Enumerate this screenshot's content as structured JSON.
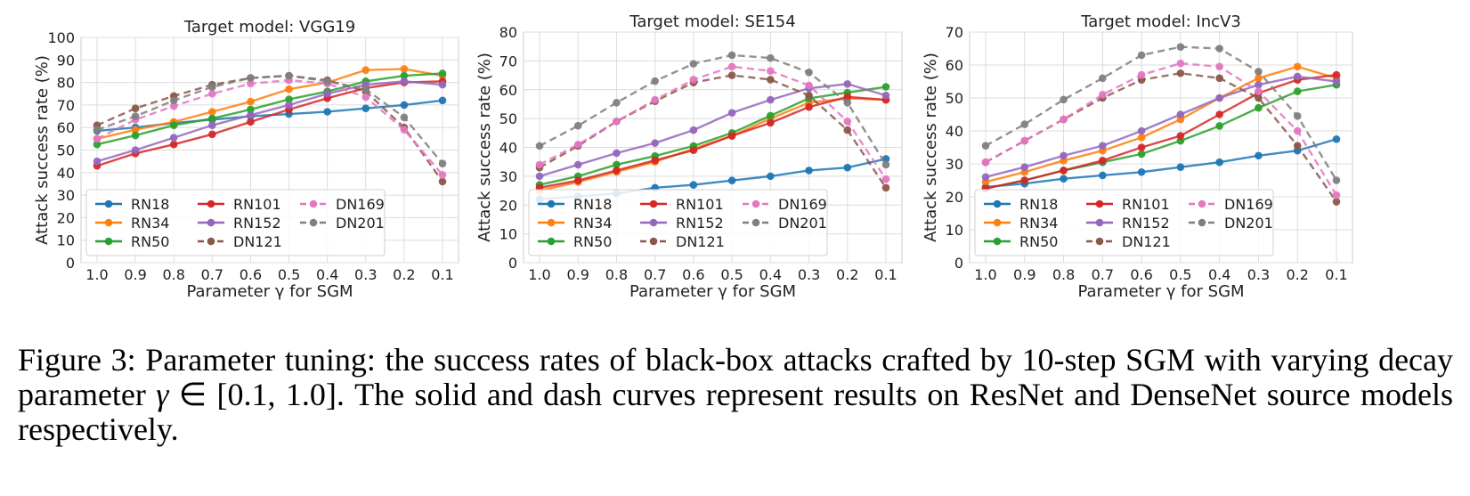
{
  "x_ticks": [
    "1.0",
    "0.9",
    "0.8",
    "0.7",
    "0.6",
    "0.5",
    "0.4",
    "0.3",
    "0.2",
    "0.1"
  ],
  "x_label": "Parameter γ for SGM",
  "y_label": "Attack success rate (%)",
  "legend": [
    {
      "name": "RN18",
      "color": "#1f77b4",
      "dashed": false
    },
    {
      "name": "RN34",
      "color": "#ff7f0e",
      "dashed": false
    },
    {
      "name": "RN50",
      "color": "#2ca02c",
      "dashed": false
    },
    {
      "name": "RN101",
      "color": "#d62728",
      "dashed": false
    },
    {
      "name": "RN152",
      "color": "#9467bd",
      "dashed": false
    },
    {
      "name": "DN121",
      "color": "#8c564b",
      "dashed": true
    },
    {
      "name": "DN169",
      "color": "#e377c2",
      "dashed": true
    },
    {
      "name": "DN201",
      "color": "#7f7f7f",
      "dashed": true
    }
  ],
  "chart_data": [
    {
      "type": "line",
      "title": "Target model: VGG19",
      "xlabel": "Parameter γ for SGM",
      "ylabel": "Attack success rate (%)",
      "categories": [
        "1.0",
        "0.9",
        "0.8",
        "0.7",
        "0.6",
        "0.5",
        "0.4",
        "0.3",
        "0.2",
        "0.1"
      ],
      "ylim": [
        0,
        100
      ],
      "yticks": [
        0,
        10,
        20,
        30,
        40,
        50,
        60,
        70,
        80,
        90,
        100
      ],
      "legend_loc": "lower-left",
      "series": [
        {
          "name": "RN18",
          "values": [
            58.5,
            60,
            62,
            63.5,
            65,
            66,
            67,
            68.5,
            70,
            72
          ]
        },
        {
          "name": "RN34",
          "values": [
            55,
            59,
            62.5,
            67,
            71.5,
            77,
            80,
            85.5,
            86,
            83
          ]
        },
        {
          "name": "RN50",
          "values": [
            52.5,
            56.5,
            61,
            64,
            68,
            72.5,
            76,
            80.5,
            83,
            84
          ]
        },
        {
          "name": "RN101",
          "values": [
            43,
            48.5,
            52.5,
            57,
            62.5,
            68,
            73,
            77.5,
            80,
            80.5
          ]
        },
        {
          "name": "RN152",
          "values": [
            45,
            50,
            55.5,
            61,
            65.5,
            70,
            75,
            79,
            80.5,
            79
          ]
        },
        {
          "name": "DN121",
          "values": [
            61,
            68.5,
            74,
            79,
            82,
            83,
            81,
            76,
            60,
            36
          ]
        },
        {
          "name": "DN169",
          "values": [
            55,
            63.5,
            69.5,
            75,
            79.5,
            81,
            79.5,
            73.5,
            59,
            39
          ]
        },
        {
          "name": "DN201",
          "values": [
            59,
            65,
            72,
            78,
            82,
            83,
            80.5,
            77,
            64.5,
            44
          ]
        }
      ]
    },
    {
      "type": "line",
      "title": "Target model: SE154",
      "xlabel": "Parameter γ for SGM",
      "ylabel": "Attack success rate (%)",
      "categories": [
        "1.0",
        "0.9",
        "0.8",
        "0.7",
        "0.6",
        "0.5",
        "0.4",
        "0.3",
        "0.2",
        "0.1"
      ],
      "ylim": [
        0,
        80
      ],
      "yticks": [
        0,
        10,
        20,
        30,
        40,
        50,
        60,
        70,
        80
      ],
      "legend_loc": "lower-left",
      "series": [
        {
          "name": "RN18",
          "values": [
            22,
            23,
            24,
            26,
            27,
            28.5,
            30,
            32,
            33,
            36
          ]
        },
        {
          "name": "RN34",
          "values": [
            25,
            28,
            31.5,
            35,
            39.5,
            44,
            50,
            55.5,
            57,
            56.5
          ]
        },
        {
          "name": "RN50",
          "values": [
            27,
            30,
            34,
            37,
            40.5,
            45,
            51,
            57,
            59,
            61
          ]
        },
        {
          "name": "RN101",
          "values": [
            26,
            28.5,
            32,
            35.5,
            39,
            44,
            48.5,
            54,
            57.5,
            56.5
          ]
        },
        {
          "name": "RN152",
          "values": [
            30,
            34,
            38,
            41.5,
            46,
            52,
            56.5,
            60.5,
            62,
            58
          ]
        },
        {
          "name": "DN121",
          "values": [
            33,
            40.5,
            49,
            56,
            62.5,
            65,
            63.5,
            58,
            46,
            26
          ]
        },
        {
          "name": "DN169",
          "values": [
            34,
            41,
            49,
            56.5,
            63.5,
            68,
            66.5,
            61.5,
            49,
            29
          ]
        },
        {
          "name": "DN201",
          "values": [
            40.5,
            47.5,
            55.5,
            63,
            69,
            72,
            71,
            66,
            55.5,
            34
          ]
        }
      ]
    },
    {
      "type": "line",
      "title": "Target model: IncV3",
      "xlabel": "Parameter γ for SGM",
      "ylabel": "Attack success rate (%)",
      "categories": [
        "1.0",
        "0.9",
        "0.8",
        "0.7",
        "0.6",
        "0.5",
        "0.4",
        "0.3",
        "0.2",
        "0.1"
      ],
      "ylim": [
        0,
        70
      ],
      "yticks": [
        0,
        10,
        20,
        30,
        40,
        50,
        60,
        70
      ],
      "legend_loc": "lower-left",
      "series": [
        {
          "name": "RN18",
          "values": [
            23,
            24,
            25.5,
            26.5,
            27.5,
            29,
            30.5,
            32.5,
            34,
            37.5
          ]
        },
        {
          "name": "RN34",
          "values": [
            24.5,
            27.5,
            31,
            34,
            38,
            43.5,
            50,
            56,
            59.5,
            56
          ]
        },
        {
          "name": "RN50",
          "values": [
            22.5,
            25,
            28,
            30.5,
            33,
            37,
            41.5,
            47,
            52,
            54
          ]
        },
        {
          "name": "RN101",
          "values": [
            22.5,
            25,
            28,
            31,
            35,
            38.5,
            45,
            51.5,
            55.5,
            57
          ]
        },
        {
          "name": "RN152",
          "values": [
            26,
            29,
            32.5,
            35.5,
            40,
            45,
            50,
            54,
            56.5,
            55
          ]
        },
        {
          "name": "DN121",
          "values": [
            30.5,
            37,
            43.5,
            50,
            55.5,
            57.5,
            56,
            50,
            35.5,
            18.5
          ]
        },
        {
          "name": "DN169",
          "values": [
            30.5,
            37,
            43.5,
            51,
            57,
            60.5,
            59.5,
            52,
            40,
            20.5
          ]
        },
        {
          "name": "DN201",
          "values": [
            35.5,
            42,
            49.5,
            56,
            63,
            65.5,
            65,
            58,
            44.5,
            25
          ]
        }
      ]
    }
  ],
  "caption": {
    "text_before_math": "Figure 3: Parameter tuning: the success rates of black-box attacks crafted by 10-step SGM with varying decay parameter ",
    "math_symbol": "γ",
    "math_rest": " ∈ [0.1, 1.0]",
    "text_after_math": ". The solid and dash curves represent results on ResNet and DenseNet source models respectively."
  }
}
